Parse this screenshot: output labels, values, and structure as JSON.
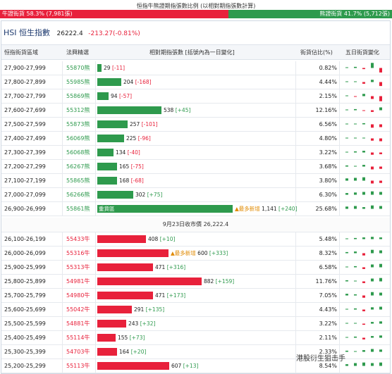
{
  "topbar": {
    "caption": "恒指牛熊證期指張數比例 (以相對期指張數計算)",
    "bull_label": "牛證街貨 58.3% (7,981張)",
    "bear_label": "熊證街貨 41.7% (5,712張)",
    "bull_ratio": 0.583,
    "colors": {
      "bull": "#e8213b",
      "bear": "#2e9a4d"
    }
  },
  "index": {
    "name": "HSI 恒生指數",
    "price": "26222.4",
    "change": "-213.27(-0.81%)"
  },
  "columns": {
    "range": "恒指街貨區域",
    "code": "法興精選",
    "futures": "相對期指張數 [括號內為一日變化]",
    "pct": "街貨佔比(%)",
    "five_day": "五日街貨變化"
  },
  "bear_rows": [
    {
      "range": "27,900-27,999",
      "code": "55870熊",
      "count": 29,
      "count_label": "29",
      "change": "[-11]",
      "pct": "0.82%",
      "spark": [
        0.1,
        0.2,
        -0.2,
        0.9,
        -0.8
      ]
    },
    {
      "range": "27,800-27,899",
      "code": "55985熊",
      "count": 204,
      "count_label": "204",
      "change": "[-168]",
      "pct": "4.44%",
      "spark": [
        0.1,
        0.1,
        -0.3,
        0.4,
        -0.7
      ]
    },
    {
      "range": "27,700-27,799",
      "code": "55869熊",
      "count": 94,
      "count_label": "94",
      "change": "[-57]",
      "pct": "2.15%",
      "spark": [
        0.0,
        -0.1,
        0.4,
        -0.5,
        -0.9
      ]
    },
    {
      "range": "27,600-27,699",
      "code": "55312熊",
      "count": 538,
      "count_label": "538",
      "change": "[+45]",
      "pct": "12.16%",
      "spark": [
        0.1,
        0.2,
        -0.1,
        -0.3,
        0.5
      ]
    },
    {
      "range": "27,500-27,599",
      "code": "55873熊",
      "count": 257,
      "count_label": "257",
      "change": "[-101]",
      "pct": "6.56%",
      "spark": [
        0.1,
        0.1,
        0.2,
        -0.6,
        -0.5
      ]
    },
    {
      "range": "27,400-27,499",
      "code": "56069熊",
      "count": 225,
      "count_label": "225",
      "change": "[-96]",
      "pct": "4.80%",
      "spark": [
        0.1,
        0.1,
        0.1,
        -0.4,
        -0.5
      ]
    },
    {
      "range": "27,300-27,399",
      "code": "56068熊",
      "count": 134,
      "count_label": "134",
      "change": "[-40]",
      "pct": "3.22%",
      "spark": [
        0.1,
        0.2,
        0.3,
        -0.4,
        -0.3
      ]
    },
    {
      "range": "27,200-27,299",
      "code": "56267熊",
      "count": 165,
      "count_label": "165",
      "change": "[-75]",
      "pct": "3.68%",
      "spark": [
        0.2,
        0.1,
        0.3,
        -0.5,
        -0.4
      ]
    },
    {
      "range": "27,100-27,199",
      "code": "55865熊",
      "count": 168,
      "count_label": "168",
      "change": "[-68]",
      "pct": "3.80%",
      "spark": [
        0.4,
        0.5,
        0.6,
        -0.5,
        -0.4
      ]
    },
    {
      "range": "27,000-27,099",
      "code": "56266熊",
      "count": 302,
      "count_label": "302",
      "change": "[+75]",
      "pct": "6.30%",
      "spark": [
        0.3,
        0.4,
        0.5,
        0.6,
        0.5
      ]
    },
    {
      "range": "26,900-26,999",
      "code": "55861熊",
      "count": 1141,
      "count_label": "1,141",
      "change": "[+240]",
      "pct": "25.68%",
      "heavy": "重貨區",
      "newest": "▲最多新增",
      "spark": [
        0.4,
        0.5,
        0.3,
        0.6,
        0.5
      ]
    }
  ],
  "divider": "9月23日收市價 26,222.4",
  "bull_rows": [
    {
      "range": "26,100-26,199",
      "code": "55433牛",
      "count": 408,
      "count_label": "408",
      "change": "[+10]",
      "pct": "5.48%",
      "spark": [
        0.1,
        0.2,
        0.3,
        0.4,
        0.3
      ]
    },
    {
      "range": "26,000-26,099",
      "code": "55316牛",
      "count": 600,
      "count_label": "600",
      "change": "[+333]",
      "pct": "8.32%",
      "newest": "▲最多新增",
      "spark": [
        0.2,
        0.3,
        -0.4,
        0.6,
        0.5
      ]
    },
    {
      "range": "25,900-25,999",
      "code": "55313牛",
      "count": 471,
      "count_label": "471",
      "change": "[+316]",
      "pct": "6.58%",
      "spark": [
        0.1,
        0.2,
        -0.3,
        0.5,
        0.6
      ]
    },
    {
      "range": "25,800-25,899",
      "code": "54981牛",
      "count": 882,
      "count_label": "882",
      "change": "[+159]",
      "pct": "11.76%",
      "spark": [
        0.2,
        0.1,
        -0.3,
        0.5,
        0.6
      ]
    },
    {
      "range": "25,700-25,799",
      "code": "54980牛",
      "count": 471,
      "count_label": "471",
      "change": "[+173]",
      "pct": "7.05%",
      "spark": [
        0.3,
        0.2,
        -0.4,
        0.6,
        0.5
      ]
    },
    {
      "range": "25,600-25,699",
      "code": "55042牛",
      "count": 291,
      "count_label": "291",
      "change": "[+135]",
      "pct": "4.43%",
      "spark": [
        0.1,
        0.2,
        -0.3,
        0.4,
        0.5
      ]
    },
    {
      "range": "25,500-25,599",
      "code": "54881牛",
      "count": 243,
      "count_label": "243",
      "change": "[+32]",
      "pct": "3.22%",
      "spark": [
        0.1,
        0.1,
        -0.2,
        0.3,
        0.4
      ]
    },
    {
      "range": "25,400-25,499",
      "code": "55114牛",
      "count": 155,
      "count_label": "155",
      "change": "[+73]",
      "pct": "2.11%",
      "spark": [
        0.1,
        0.2,
        -0.3,
        0.3,
        0.4
      ]
    },
    {
      "range": "25,300-25,399",
      "code": "54703牛",
      "count": 164,
      "count_label": "164",
      "change": "[+20]",
      "pct": "2.33%",
      "spark": [
        0.2,
        0.1,
        0.3,
        0.5,
        0.4
      ]
    },
    {
      "range": "25,200-25,299",
      "code": "55113牛",
      "count": 607,
      "count_label": "607",
      "change": "[+13]",
      "pct": "8.54%",
      "spark": [
        0.3,
        0.5,
        0.6,
        0.5,
        0.6
      ]
    }
  ],
  "watermark": "港股衍生狙击手"
}
